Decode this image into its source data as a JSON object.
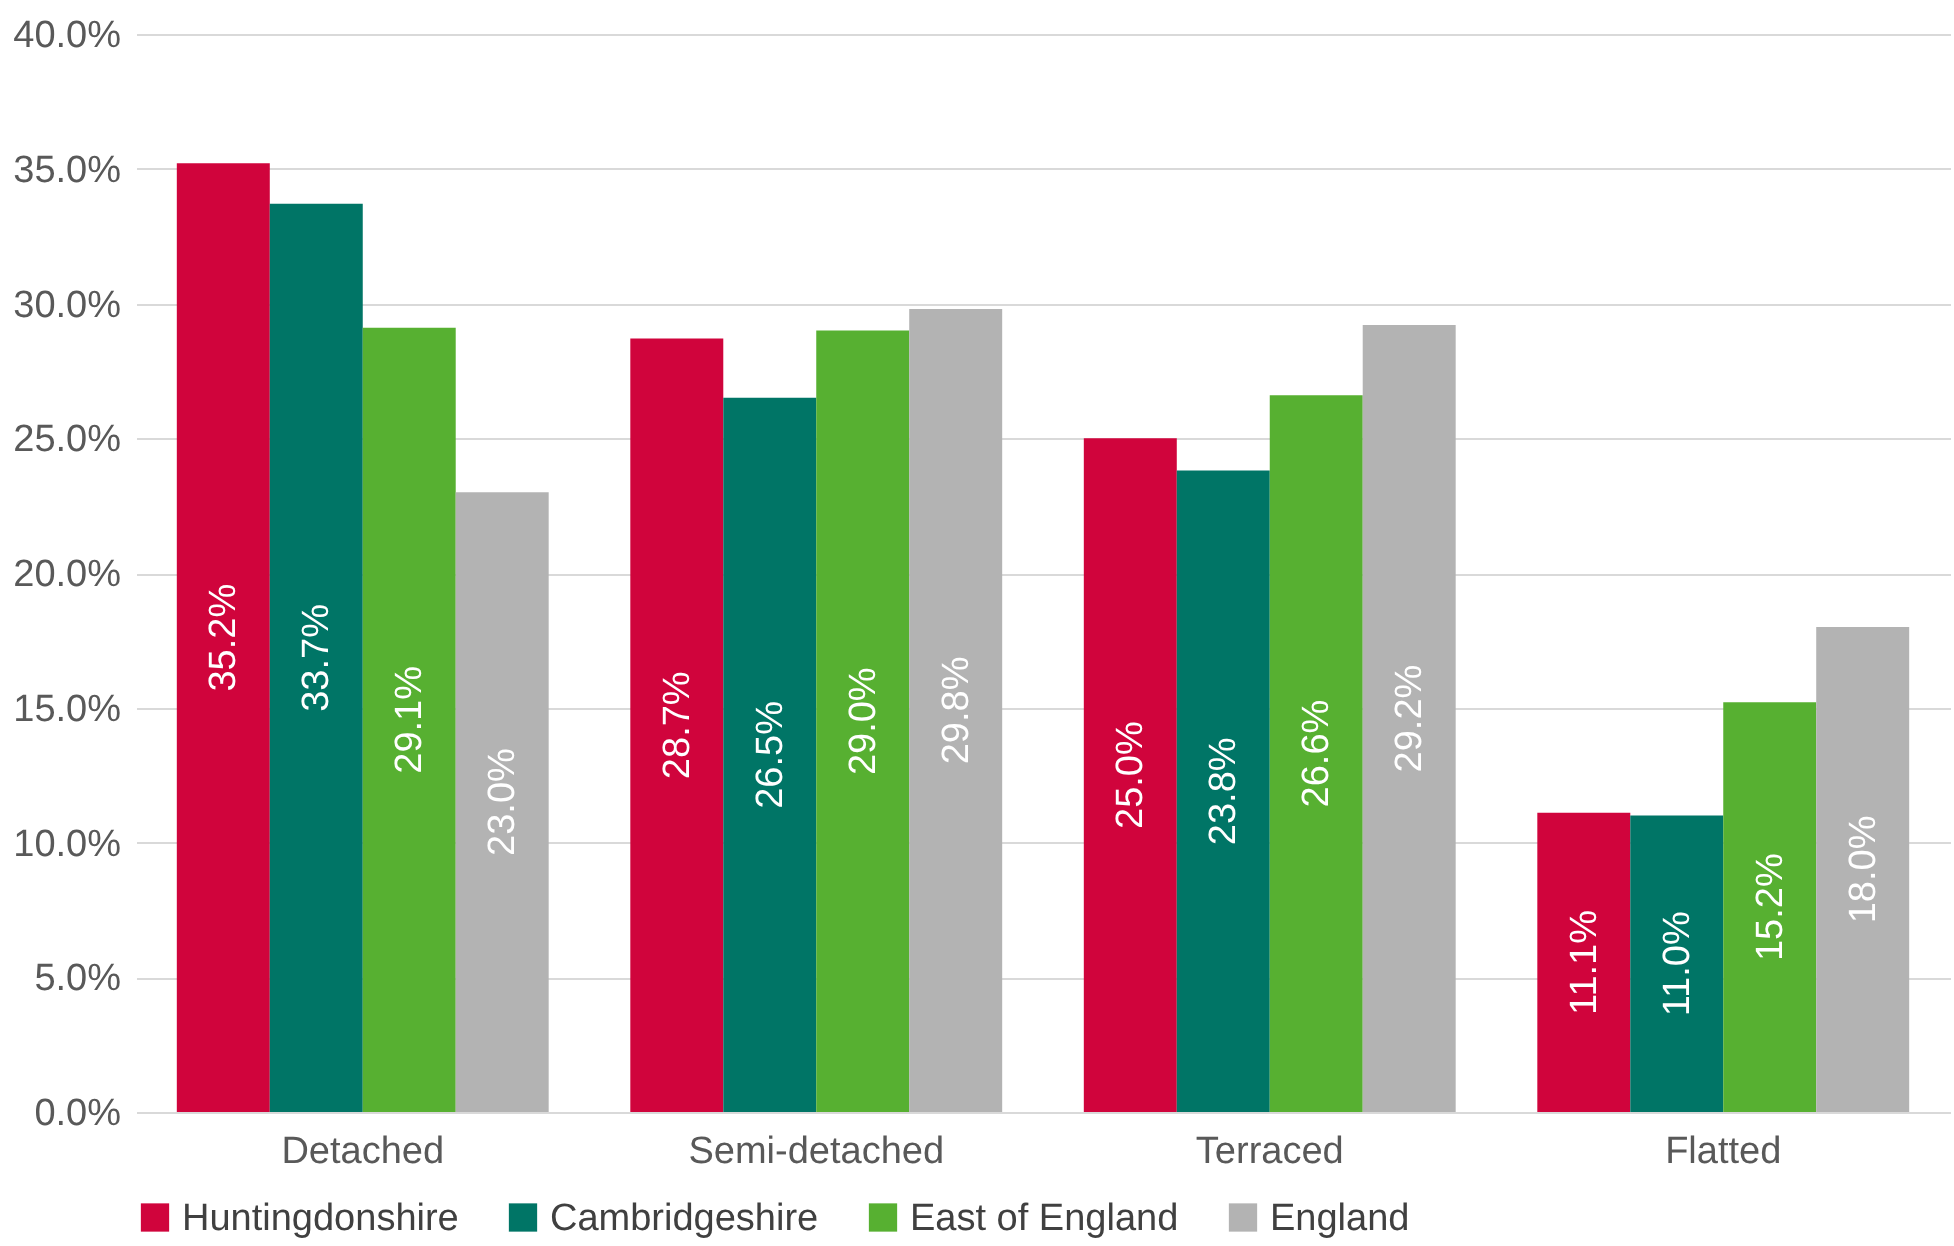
{
  "chart_data": {
    "type": "bar",
    "categories": [
      "Detached",
      "Semi-detached",
      "Terraced",
      "Flatted"
    ],
    "series": [
      {
        "name": "Huntingdonshire",
        "color": "#d0043c",
        "values": [
          35.2,
          28.7,
          25.0,
          11.1
        ],
        "value_labels": [
          "35.2%",
          "28.7%",
          "25.0%",
          "11.1%"
        ]
      },
      {
        "name": "Cambridgeshire",
        "color": "#007566",
        "values": [
          33.7,
          26.5,
          23.8,
          11.0
        ],
        "value_labels": [
          "33.7%",
          "26.5%",
          "23.8%",
          "11.0%"
        ]
      },
      {
        "name": "East of England",
        "color": "#57b031",
        "values": [
          29.1,
          29.0,
          26.6,
          15.2
        ],
        "value_labels": [
          "29.1%",
          "29.0%",
          "26.6%",
          "15.2%"
        ]
      },
      {
        "name": "England",
        "color": "#b3b3b3",
        "values": [
          23.0,
          29.8,
          29.2,
          18.0
        ],
        "value_labels": [
          "23.0%",
          "29.8%",
          "29.2%",
          "18.0%"
        ]
      }
    ],
    "ylim": [
      0,
      40
    ],
    "yticks": [
      {
        "value": 0,
        "label": "0.0%"
      },
      {
        "value": 5,
        "label": "5.0%"
      },
      {
        "value": 10,
        "label": "10.0%"
      },
      {
        "value": 15,
        "label": "15.0%"
      },
      {
        "value": 20,
        "label": "20.0%"
      },
      {
        "value": 25,
        "label": "25.0%"
      },
      {
        "value": 30,
        "label": "30.0%"
      },
      {
        "value": 35,
        "label": "35.0%"
      },
      {
        "value": 40,
        "label": "40.0%"
      }
    ],
    "grid": "y",
    "legend": "bottom"
  }
}
